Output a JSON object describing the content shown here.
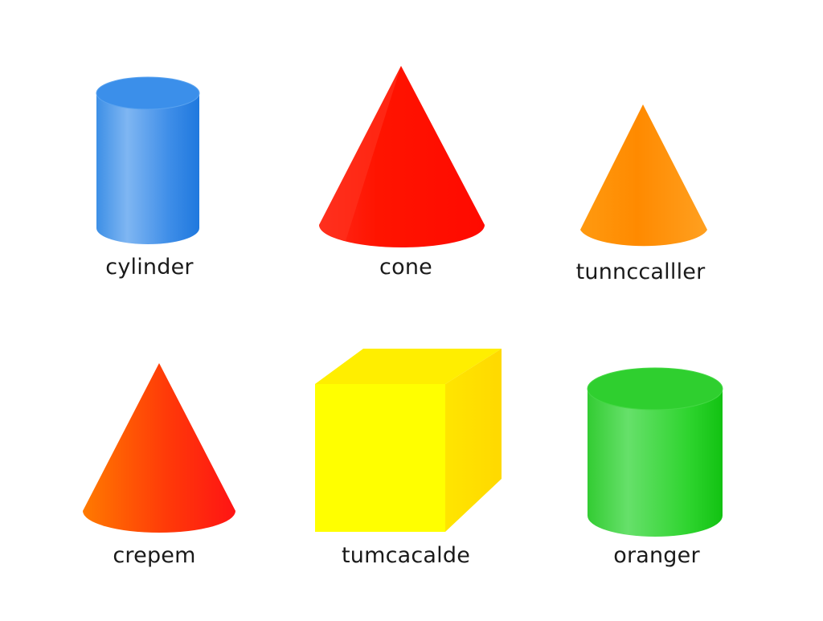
{
  "shapes": [
    {
      "label": "cylinder",
      "icon": "cylinder-icon",
      "color": "#2f86e6"
    },
    {
      "label": "cone",
      "icon": "cone-icon",
      "color": "#ff1a00"
    },
    {
      "label": "tunnccalller",
      "icon": "cone-icon",
      "color": "#ff8c00"
    },
    {
      "label": "crepem",
      "icon": "cone-icon",
      "color": "#ff4a00"
    },
    {
      "label": "tumcacalde",
      "icon": "cube-icon",
      "color": "#ffee00"
    },
    {
      "label": "oranger",
      "icon": "cylinder-icon",
      "color": "#22cc22"
    }
  ]
}
